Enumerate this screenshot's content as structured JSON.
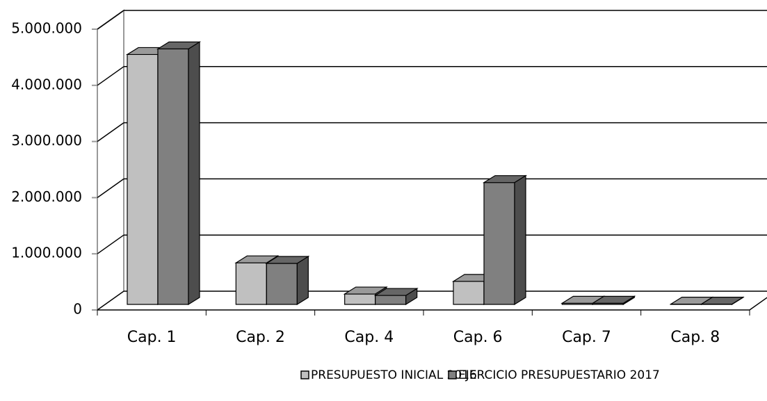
{
  "chart_data": {
    "type": "bar3d",
    "categories": [
      "Cap. 1",
      "Cap. 2",
      "Cap. 4",
      "Cap. 6",
      "Cap. 7",
      "Cap. 8"
    ],
    "series": [
      {
        "name": "PRESUPUESTO INICIAL 2016",
        "color": "#c0c0c0",
        "values": [
          4450000,
          740000,
          185000,
          410000,
          20000,
          5000
        ]
      },
      {
        "name": "EJERCICIO PRESUPUESTARIO 2017",
        "color": "#808080",
        "values": [
          4550000,
          730000,
          160000,
          2170000,
          20000,
          5000
        ]
      }
    ],
    "ylim": [
      0,
      5000000
    ],
    "yticks": [
      {
        "value": 0,
        "label": "0"
      },
      {
        "value": 1000000,
        "label": "1.000.000"
      },
      {
        "value": 2000000,
        "label": "2.000.000"
      },
      {
        "value": 3000000,
        "label": "3.000.000"
      },
      {
        "value": 4000000,
        "label": "4.000.000"
      },
      {
        "value": 5000000,
        "label": "5.000.000"
      }
    ],
    "grid": true,
    "legend": "bottom"
  }
}
